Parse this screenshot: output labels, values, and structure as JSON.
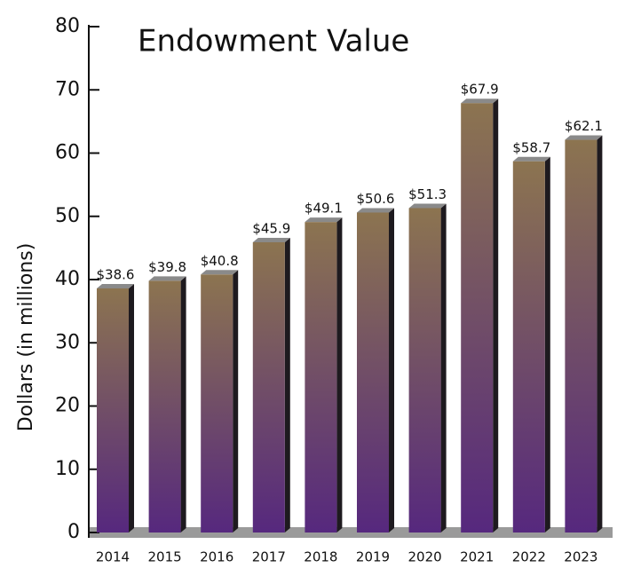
{
  "chart_data": {
    "type": "bar",
    "title": "Endowment Value",
    "y_label": "Dollars (in millions)",
    "categories": [
      "2014",
      "2015",
      "2016",
      "2017",
      "2018",
      "2019",
      "2020",
      "2021",
      "2022",
      "2023"
    ],
    "values": [
      38.6,
      39.8,
      40.8,
      45.9,
      49.1,
      50.6,
      51.3,
      67.9,
      58.7,
      62.1
    ],
    "value_labels": [
      "$38.6",
      "$39.8",
      "$40.8",
      "$45.9",
      "$49.1",
      "$50.6",
      "$51.3",
      "$67.9",
      "$58.7",
      "$62.1"
    ],
    "color_top": "#8c7450",
    "color_bottom": "#56287e",
    "ylim": [
      0,
      80
    ],
    "yticks": [
      0,
      10,
      20,
      30,
      40,
      50,
      60,
      70,
      80
    ]
  }
}
